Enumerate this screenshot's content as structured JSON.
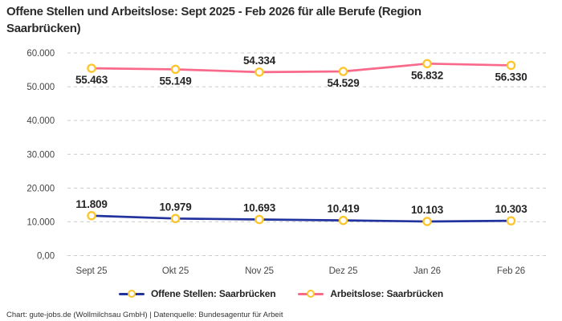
{
  "title": "Offene Stellen und Arbeitslose: Sept 2025 - Feb 2026 für alle Berufe (Region Saarbrücken)",
  "footer": "Chart: gute-jobs.de (Wollmilchsau GmbH) | Datenquelle: Bundesagentur für Arbeit",
  "colors": {
    "offene_stellen": "#23339d",
    "arbeitslose": "#f9698a",
    "marker_ring": "#fdc52b",
    "marker_fill": "#ffffff",
    "gridline": "#cccccc",
    "axis_text": "#474747",
    "label_text": "#252525"
  },
  "legend": {
    "items": [
      {
        "label": "Offene Stellen: Saarbrücken",
        "color_key": "offene_stellen",
        "slug": "offene-stellen"
      },
      {
        "label": "Arbeitslose: Saarbrücken",
        "color_key": "arbeitslose",
        "slug": "arbeitslose"
      }
    ]
  },
  "chart_data": {
    "type": "line",
    "title": "Offene Stellen und Arbeitslose: Sept 2025 - Feb 2026 für alle Berufe (Region Saarbrücken)",
    "categories": [
      "Sept 25",
      "Okt 25",
      "Nov 25",
      "Dez 25",
      "Jan 26",
      "Feb 26"
    ],
    "series": [
      {
        "name": "Offene Stellen: Saarbrücken",
        "slug": "offene-stellen",
        "color_key": "offene_stellen",
        "values": [
          11809,
          10979,
          10693,
          10419,
          10103,
          10303
        ],
        "labels": [
          "11.809",
          "10.979",
          "10.693",
          "10.419",
          "10.103",
          "10.303"
        ],
        "label_side": [
          "above",
          "above",
          "above",
          "above",
          "above",
          "above"
        ]
      },
      {
        "name": "Arbeitslose: Saarbrücken",
        "slug": "arbeitslose",
        "color_key": "arbeitslose",
        "values": [
          55463,
          55149,
          54334,
          54529,
          56832,
          56330
        ],
        "labels": [
          "55.463",
          "55.149",
          "54.334",
          "54.529",
          "56.832",
          "56.330"
        ],
        "label_side": [
          "below",
          "below",
          "above",
          "below",
          "below",
          "below"
        ]
      }
    ],
    "y_ticks": [
      {
        "value": 0,
        "label": "0,00"
      },
      {
        "value": 10000,
        "label": "10.000"
      },
      {
        "value": 20000,
        "label": "20.000"
      },
      {
        "value": 30000,
        "label": "30.000"
      },
      {
        "value": 40000,
        "label": "40.000"
      },
      {
        "value": 50000,
        "label": "50.000"
      },
      {
        "value": 60000,
        "label": "60.000"
      }
    ],
    "ylim": [
      0,
      60000
    ],
    "grid": "dashed-horizontal",
    "legend_position": "bottom",
    "marker_style": "ring"
  }
}
